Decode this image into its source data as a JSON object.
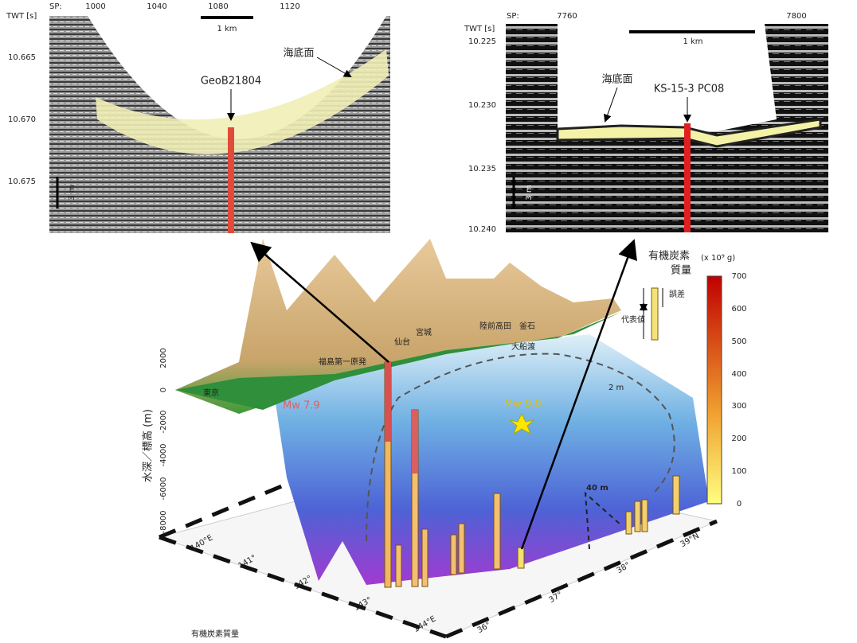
{
  "left_profile": {
    "twt_label": "TWT [s]",
    "sp_label": "SP:",
    "sp_ticks": [
      "1000",
      "1040",
      "1080",
      "1120"
    ],
    "twt_ticks": [
      "10.665",
      "10.670",
      "10.675"
    ],
    "scale_km": "1 km",
    "scale_m": "3 m",
    "seafloor": "海底面",
    "core": "GeoB21804"
  },
  "right_profile": {
    "twt_label": "TWT [s]",
    "sp_label": "SP:",
    "sp_ticks": [
      "7760",
      "7800"
    ],
    "twt_ticks": [
      "10.225",
      "10.230",
      "10.235",
      "10.240"
    ],
    "scale_km": "1 km",
    "scale_m": "3 m",
    "seafloor": "海底面",
    "core": "KS-15-3 PC08"
  },
  "map": {
    "y_axis_label": "水深／標高 (m)",
    "y_ticks": [
      "2000",
      "0",
      "-2000",
      "-4000",
      "-6000",
      "-8000"
    ],
    "places": [
      "東京",
      "福島第一原発",
      "仙台",
      "宮城",
      "陸前高田",
      "釜石",
      "大船渡"
    ],
    "annotations": [
      "Mw 7.9",
      "Mw 9.0",
      "2 m",
      "40 m"
    ],
    "lon_ticks": [
      "140°E",
      "141°",
      "142°",
      "143°",
      "144°E"
    ],
    "lat_ticks": [
      "39°N",
      "38°",
      "37°",
      "36°"
    ]
  },
  "colorbar": {
    "title_1": "有機炭素",
    "title_2": "質量",
    "unit": "(x 10⁹ g)",
    "ticks": [
      "700",
      "600",
      "500",
      "400",
      "300",
      "200",
      "100",
      "0"
    ],
    "error_label": "誤差",
    "representative_label": "代表値"
  },
  "caption": "有機炭素質量"
}
